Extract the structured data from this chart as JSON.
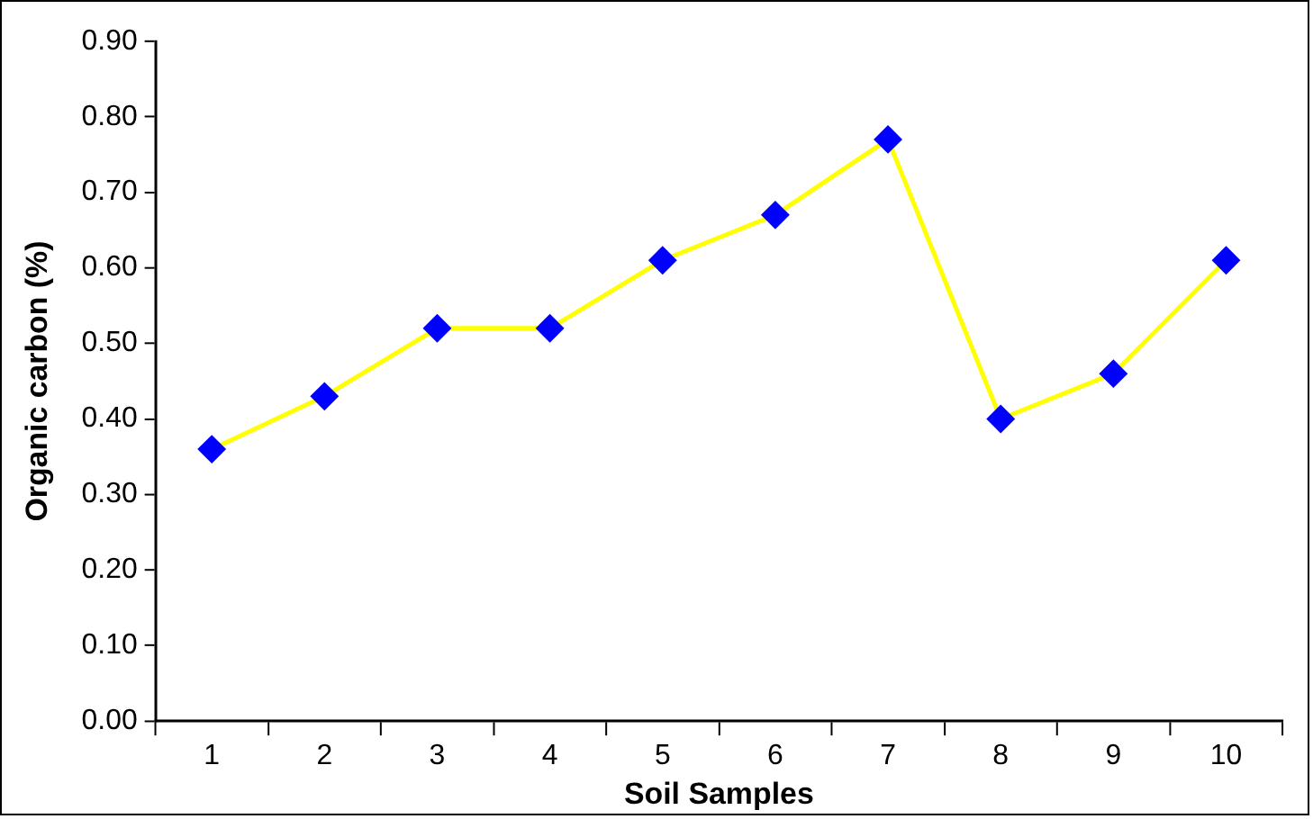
{
  "chart_data": {
    "type": "line",
    "xlabel": "Soil Samples",
    "ylabel": "Organic carbon (%)",
    "categories": [
      "1",
      "2",
      "3",
      "4",
      "5",
      "6",
      "7",
      "8",
      "9",
      "10"
    ],
    "series": [
      {
        "color": "#ffff00",
        "colors": [
          "#0000ff",
          "#0000ff",
          "#0000ff",
          "#0000ff",
          "#0000ff",
          "#0000ff",
          "#0000ff",
          "#0000ff",
          "#0000ff",
          "#0000ff"
        ],
        "values": [
          0.36,
          0.43,
          0.52,
          0.52,
          0.61,
          0.67,
          0.77,
          0.4,
          0.46,
          0.61
        ]
      }
    ],
    "marker": "diamond",
    "line_style": "solid",
    "grid": false,
    "legend": false,
    "ylim": [
      0,
      0.9
    ],
    "yticks": [
      {
        "value": 0,
        "label": "0.00"
      },
      {
        "value": 0.1,
        "label": "0.10"
      },
      {
        "value": 0.2,
        "label": "0.20"
      },
      {
        "value": 0.3,
        "label": "0.30"
      },
      {
        "value": 0.4,
        "label": "0.40"
      },
      {
        "value": 0.5,
        "label": "0.50"
      },
      {
        "value": 0.6,
        "label": "0.60"
      },
      {
        "value": 0.7,
        "label": "0.70"
      },
      {
        "value": 0.8,
        "label": "0.80"
      },
      {
        "value": 0.9,
        "label": "0.90"
      }
    ]
  }
}
